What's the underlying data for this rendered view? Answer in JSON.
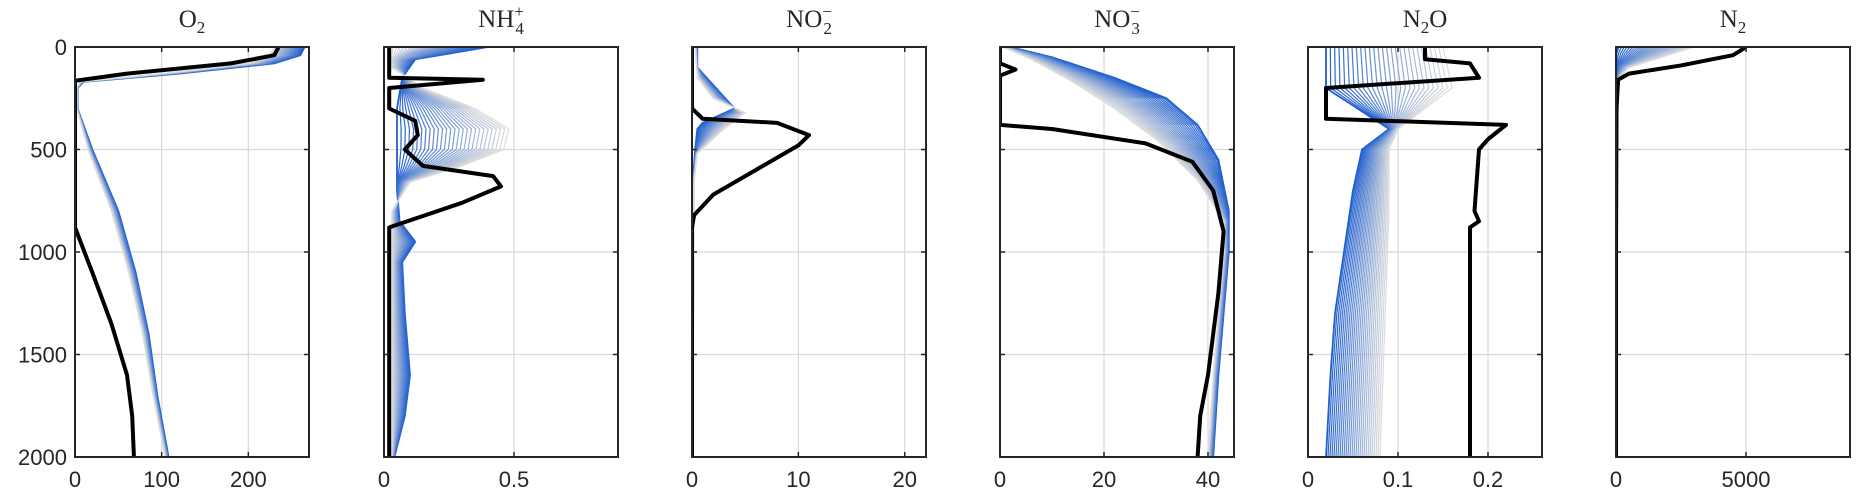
{
  "chart_data": [
    {
      "type": "line",
      "title": "O2",
      "title_parts": {
        "base": "O",
        "sub": "2",
        "sup": ""
      },
      "xlim": [
        0,
        270
      ],
      "ylim": [
        0,
        2000
      ],
      "y_reversed": true,
      "grid": true,
      "xticks": [
        0,
        100,
        200
      ],
      "xtick_labels": [
        "0",
        "100",
        "200"
      ],
      "yticks": [
        0,
        500,
        1000,
        1500,
        2000
      ],
      "ytick_labels": [
        "0",
        "500",
        "1000",
        "1500",
        "2000"
      ],
      "colors": {
        "start": "#1f5fd0",
        "end": "#dcdcdc",
        "final": "#000000"
      },
      "series": [
        {
          "role": "first",
          "x": [
            265,
            260,
            230,
            120,
            10,
            3,
            3,
            20,
            50,
            70,
            85,
            95,
            108
          ],
          "y": [
            0,
            40,
            80,
            130,
            170,
            200,
            300,
            500,
            800,
            1100,
            1400,
            1700,
            2000
          ]
        },
        {
          "role": "spread",
          "x": [
            230,
            225,
            200,
            100,
            6,
            2,
            2,
            15,
            42,
            62,
            78,
            90,
            104
          ],
          "y": [
            0,
            40,
            80,
            130,
            170,
            200,
            300,
            500,
            800,
            1100,
            1400,
            1700,
            2000
          ]
        },
        {
          "role": "final",
          "x": [
            235,
            230,
            180,
            60,
            0,
            0,
            0,
            0,
            0,
            20,
            42,
            60,
            66,
            68
          ],
          "y": [
            0,
            40,
            80,
            130,
            165,
            200,
            640,
            850,
            880,
            1100,
            1350,
            1600,
            1800,
            2000
          ]
        }
      ]
    },
    {
      "type": "line",
      "title": "NH4+",
      "title_parts": {
        "base": "NH",
        "sub": "4",
        "sup": "+"
      },
      "xlim": [
        0,
        0.9
      ],
      "ylim": [
        0,
        2000
      ],
      "y_reversed": true,
      "grid": true,
      "xticks": [
        0,
        0.5
      ],
      "xtick_labels": [
        "0",
        "0.5"
      ],
      "yticks": [
        0,
        500,
        1000,
        1500,
        2000
      ],
      "ytick_labels": [],
      "colors": {
        "start": "#1f5fd0",
        "end": "#dcdcdc",
        "final": "#000000"
      },
      "series": [
        {
          "role": "first",
          "x": [
            0.4,
            0.12,
            0.07,
            0.05,
            0.05,
            0.05,
            0.06,
            0.12,
            0.07,
            0.08,
            0.1,
            0.08,
            0.04
          ],
          "y": [
            0,
            60,
            150,
            300,
            500,
            700,
            850,
            950,
            1050,
            1300,
            1600,
            1800,
            2000
          ]
        },
        {
          "role": "spread",
          "x": [
            0.02,
            0.03,
            0.15,
            0.35,
            0.48,
            0.46,
            0.3,
            0.1,
            0.03,
            0.03
          ],
          "y": [
            0,
            100,
            200,
            300,
            400,
            500,
            580,
            660,
            800,
            2000
          ]
        },
        {
          "role": "final",
          "x": [
            0.02,
            0.02,
            0.38,
            0.02,
            0.02,
            0.12,
            0.13,
            0.08,
            0.15,
            0.42,
            0.45,
            0.3,
            0.02,
            0.02
          ],
          "y": [
            0,
            150,
            160,
            200,
            300,
            360,
            430,
            500,
            580,
            630,
            680,
            760,
            880,
            2000
          ]
        }
      ]
    },
    {
      "type": "line",
      "title": "NO2-",
      "title_parts": {
        "base": "NO",
        "sub": "2",
        "sup": "−"
      },
      "xlim": [
        0,
        22
      ],
      "ylim": [
        0,
        2000
      ],
      "y_reversed": true,
      "grid": true,
      "xticks": [
        0,
        10,
        20
      ],
      "xtick_labels": [
        "0",
        "10",
        "20"
      ],
      "yticks": [
        0,
        500,
        1000,
        1500,
        2000
      ],
      "ytick_labels": [],
      "colors": {
        "start": "#1f5fd0",
        "end": "#dcdcdc",
        "final": "#000000"
      },
      "series": [
        {
          "role": "first",
          "x": [
            0.5,
            0.5,
            4,
            1,
            0.5,
            0.3,
            0,
            0
          ],
          "y": [
            0,
            100,
            300,
            370,
            400,
            500,
            700,
            2000
          ]
        },
        {
          "role": "spread",
          "x": [
            0.3,
            0.5,
            2,
            5,
            3,
            0.5,
            0.2,
            0.1
          ],
          "y": [
            0,
            150,
            250,
            320,
            400,
            520,
            650,
            2000
          ]
        },
        {
          "role": "final",
          "x": [
            0,
            0,
            0,
            1,
            8,
            11,
            10,
            6,
            2,
            0.2,
            0,
            0
          ],
          "y": [
            0,
            100,
            300,
            350,
            370,
            430,
            480,
            600,
            720,
            820,
            880,
            2000
          ]
        }
      ]
    },
    {
      "type": "line",
      "title": "NO3-",
      "title_parts": {
        "base": "NO",
        "sub": "3",
        "sup": "−"
      },
      "xlim": [
        0,
        45
      ],
      "ylim": [
        0,
        2000
      ],
      "y_reversed": true,
      "grid": true,
      "xticks": [
        0,
        20,
        40
      ],
      "xtick_labels": [
        "0",
        "20",
        "40"
      ],
      "yticks": [
        0,
        500,
        1000,
        1500,
        2000
      ],
      "ytick_labels": [],
      "colors": {
        "start": "#1f5fd0",
        "end": "#dcdcdc",
        "final": "#000000"
      },
      "series": [
        {
          "role": "first",
          "x": [
            2,
            10,
            22,
            32,
            38,
            42,
            44,
            44,
            43,
            42,
            41
          ],
          "y": [
            0,
            50,
            150,
            250,
            380,
            550,
            800,
            1000,
            1300,
            1600,
            2000
          ]
        },
        {
          "role": "spread",
          "x": [
            0.5,
            6,
            14,
            22,
            30,
            38,
            43,
            43,
            42,
            41,
            40
          ],
          "y": [
            0,
            60,
            170,
            300,
            450,
            650,
            850,
            1000,
            1300,
            1600,
            2000
          ]
        },
        {
          "role": "final",
          "x": [
            0,
            0,
            3,
            0,
            0,
            0,
            0,
            10,
            28,
            37,
            41,
            43,
            42,
            40,
            38.5,
            38
          ],
          "y": [
            0,
            80,
            110,
            140,
            250,
            300,
            380,
            400,
            470,
            560,
            700,
            900,
            1200,
            1600,
            1800,
            2000
          ]
        }
      ]
    },
    {
      "type": "line",
      "title": "N2O",
      "title_parts": {
        "base": "N",
        "sub": "2",
        "sup": "",
        "suffix": "O"
      },
      "xlim": [
        0,
        0.26
      ],
      "ylim": [
        0,
        2000
      ],
      "y_reversed": true,
      "grid": true,
      "xticks": [
        0,
        0.1,
        0.2
      ],
      "xtick_labels": [
        "0",
        "0.1",
        "0.2"
      ],
      "yticks": [
        0,
        500,
        1000,
        1500,
        2000
      ],
      "ytick_labels": [],
      "colors": {
        "start": "#1f5fd0",
        "end": "#dcdcdc",
        "final": "#000000"
      },
      "series": [
        {
          "role": "first",
          "x": [
            0.02,
            0.02,
            0.09,
            0.06,
            0.05,
            0.04,
            0.03,
            0.025,
            0.02
          ],
          "y": [
            0,
            200,
            400,
            500,
            700,
            1000,
            1300,
            1600,
            2000
          ]
        },
        {
          "role": "spread",
          "x": [
            0.15,
            0.16,
            0.1,
            0.09,
            0.09,
            0.085,
            0.08
          ],
          "y": [
            0,
            200,
            400,
            500,
            800,
            1400,
            2000
          ]
        },
        {
          "role": "final",
          "x": [
            0.13,
            0.13,
            0.18,
            0.19,
            0.02,
            0.02,
            0.02,
            0.22,
            0.2,
            0.19,
            0.185,
            0.19,
            0.18,
            0.18,
            0.18
          ],
          "y": [
            0,
            60,
            80,
            150,
            200,
            250,
            350,
            380,
            450,
            500,
            800,
            850,
            880,
            1200,
            2000
          ]
        }
      ]
    },
    {
      "type": "line",
      "title": "N2",
      "title_parts": {
        "base": "N",
        "sub": "2",
        "sup": ""
      },
      "xlim": [
        0,
        9000
      ],
      "ylim": [
        0,
        2000
      ],
      "y_reversed": true,
      "grid": true,
      "xticks": [
        0,
        5000
      ],
      "xtick_labels": [
        "0",
        "5000"
      ],
      "yticks": [
        0,
        500,
        1000,
        1500,
        2000
      ],
      "ytick_labels": [],
      "colors": {
        "start": "#1f5fd0",
        "end": "#dcdcdc",
        "final": "#000000"
      },
      "series": [
        {
          "role": "first",
          "x": [
            100,
            20,
            0,
            0
          ],
          "y": [
            0,
            30,
            60,
            2000
          ]
        },
        {
          "role": "spread",
          "x": [
            3000,
            2000,
            500,
            50,
            0
          ],
          "y": [
            0,
            40,
            100,
            160,
            2000
          ]
        },
        {
          "role": "final",
          "x": [
            5000,
            4500,
            2500,
            500,
            80,
            20,
            0,
            0
          ],
          "y": [
            0,
            40,
            90,
            130,
            160,
            300,
            1000,
            2000
          ]
        }
      ]
    }
  ]
}
